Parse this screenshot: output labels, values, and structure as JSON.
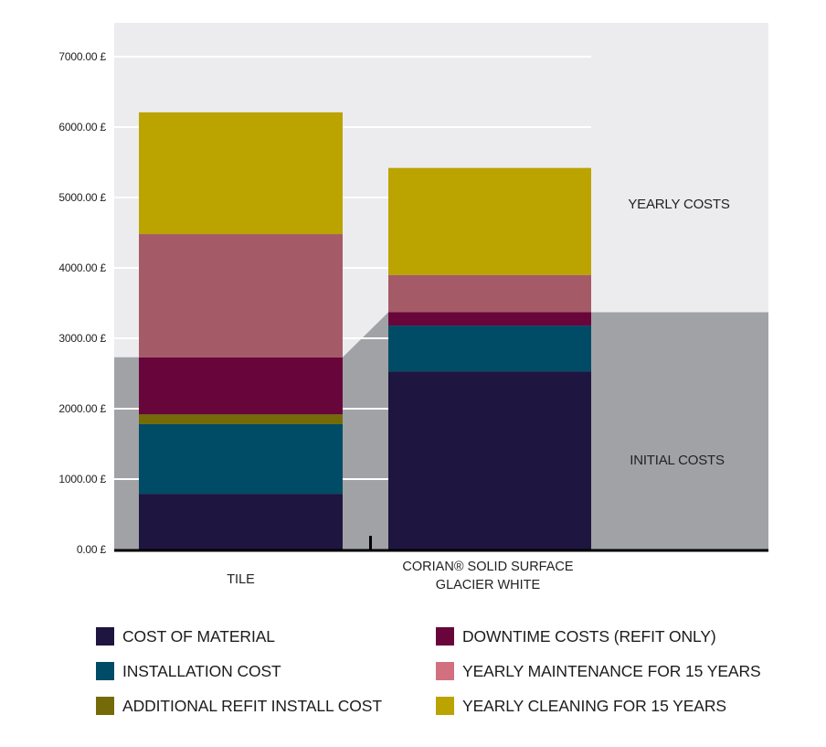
{
  "chart_data": {
    "type": "bar",
    "stacked": true,
    "title": "",
    "xlabel": "",
    "ylabel": "",
    "ylim": [
      0,
      7000
    ],
    "yticks": [
      0,
      1000,
      2000,
      3000,
      4000,
      5000,
      6000,
      7000
    ],
    "ytick_labels": [
      "0.00 £",
      "1000.00 £",
      "2000.00 £",
      "3000.00 £",
      "4000.00 £",
      "5000.00 £",
      "6000.00 £",
      "7000.00 £"
    ],
    "grid": true,
    "categories": [
      {
        "lines": [
          "TILE"
        ]
      },
      {
        "lines": [
          "CORIAN® SOLID SURFACE",
          "GLACIER WHITE"
        ]
      }
    ],
    "series": [
      {
        "name": "COST OF MATERIAL",
        "color": "#1e1540",
        "legend_color": "#1e1540",
        "values": [
          790,
          2530
        ]
      },
      {
        "name": "INSTALLATION COST",
        "color": "#004b66",
        "legend_color": "#004b66",
        "values": [
          990,
          650
        ]
      },
      {
        "name": "ADDITIONAL REFIT INSTALL COST",
        "color": "#756a08",
        "legend_color": "#756a08",
        "values": [
          140,
          0
        ]
      },
      {
        "name": "DOWNTIME COSTS (REFIT ONLY)",
        "color": "#68063b",
        "legend_color": "#68063b",
        "values": [
          810,
          190
        ]
      },
      {
        "name": "YEARLY MAINTENANCE FOR 15 YEARS",
        "color": "#a55a68",
        "legend_color": "#d2707f",
        "values": [
          1750,
          530
        ]
      },
      {
        "name": "YEARLY CLEANING FOR 15 YEARS",
        "color": "#bba300",
        "legend_color": "#bba300",
        "values": [
          1730,
          1520
        ]
      }
    ],
    "regions": [
      {
        "label": "YEARLY COSTS",
        "color": "#ececee"
      },
      {
        "label": "INITIAL COSTS",
        "color": "#a1a2a6"
      }
    ],
    "legend_position": "bottom"
  }
}
